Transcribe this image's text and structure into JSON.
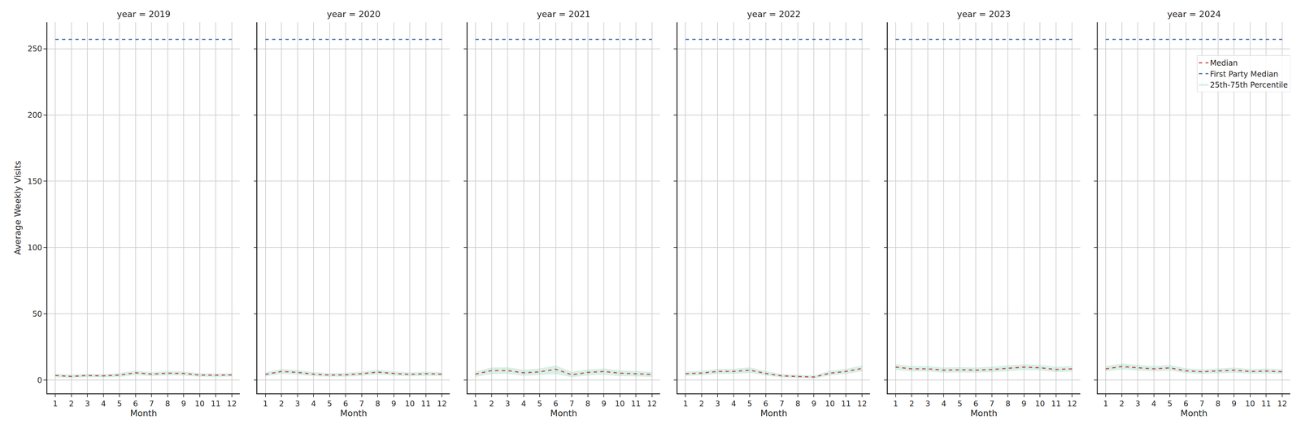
{
  "chart_data": [
    {
      "type": "line",
      "title": "year = 2019",
      "xlabel": "Month",
      "ylabel": "Average Weekly Visits",
      "x": [
        1,
        2,
        3,
        4,
        5,
        6,
        7,
        8,
        9,
        10,
        11,
        12
      ],
      "xlim": [
        0.5,
        12.5
      ],
      "xticks": [
        1,
        2,
        3,
        4,
        5,
        6,
        7,
        8,
        9,
        10,
        11,
        12
      ],
      "ylim": [
        -10,
        270
      ],
      "yticks": [
        0,
        50,
        100,
        150,
        200,
        250
      ],
      "grid": true,
      "series": [
        {
          "name": "Median",
          "color": "#c44e52",
          "line_style": "dashed",
          "values": [
            3.5,
            2.8,
            3.5,
            3.2,
            3.8,
            5.5,
            4.5,
            5.2,
            5.0,
            3.8,
            3.7,
            3.9
          ]
        },
        {
          "name": "First Party Median",
          "color": "#4c72b0",
          "line_style": "dashed",
          "values": [
            257,
            257,
            257,
            257,
            257,
            257,
            257,
            257,
            257,
            257,
            257,
            257
          ]
        },
        {
          "name": "25th-75th Percentile",
          "type": "band",
          "color": "#8fd3b8",
          "lower": [
            2.0,
            1.6,
            2.2,
            2.0,
            2.4,
            3.8,
            3.0,
            3.6,
            3.4,
            2.5,
            2.4,
            2.6
          ],
          "upper": [
            4.8,
            4.2,
            4.8,
            4.5,
            5.3,
            7.2,
            6.0,
            6.8,
            6.6,
            5.2,
            5.0,
            5.2
          ]
        }
      ]
    },
    {
      "type": "line",
      "title": "year = 2020",
      "xlabel": "Month",
      "tick_labels": "x",
      "x": [
        1,
        2,
        3,
        4,
        5,
        6,
        7,
        8,
        9,
        10,
        11,
        12
      ],
      "xlim": [
        0.5,
        12.5
      ],
      "xticks": [
        1,
        2,
        3,
        4,
        5,
        6,
        7,
        8,
        9,
        10,
        11,
        12
      ],
      "ylim": [
        -10,
        270
      ],
      "yticks": [
        0,
        50,
        100,
        150,
        200,
        250
      ],
      "grid": true,
      "series": [
        {
          "name": "Median",
          "color": "#c44e52",
          "line_style": "dashed",
          "values": [
            4.3,
            6.5,
            5.8,
            4.5,
            3.8,
            4.0,
            4.8,
            6.0,
            5.0,
            4.3,
            4.8,
            4.5
          ]
        },
        {
          "name": "First Party Median",
          "color": "#4c72b0",
          "line_style": "dashed",
          "values": [
            257,
            257,
            257,
            257,
            257,
            257,
            257,
            257,
            257,
            257,
            257,
            257
          ]
        },
        {
          "name": "25th-75th Percentile",
          "type": "band",
          "color": "#8fd3b8",
          "lower": [
            2.8,
            4.6,
            4.0,
            3.0,
            2.5,
            2.6,
            3.2,
            4.2,
            3.4,
            2.9,
            3.2,
            3.0
          ],
          "upper": [
            5.9,
            8.4,
            7.6,
            6.1,
            5.2,
            5.5,
            6.4,
            7.8,
            6.6,
            5.8,
            6.4,
            6.0
          ]
        }
      ]
    },
    {
      "type": "line",
      "title": "year = 2021",
      "xlabel": "Month",
      "tick_labels": "x",
      "x": [
        1,
        2,
        3,
        4,
        5,
        6,
        7,
        8,
        9,
        10,
        11,
        12
      ],
      "xlim": [
        0.5,
        12.5
      ],
      "xticks": [
        1,
        2,
        3,
        4,
        5,
        6,
        7,
        8,
        9,
        10,
        11,
        12
      ],
      "ylim": [
        -10,
        270
      ],
      "yticks": [
        0,
        50,
        100,
        150,
        200,
        250
      ],
      "grid": true,
      "series": [
        {
          "name": "Median",
          "color": "#c44e52",
          "line_style": "dashed",
          "values": [
            4.5,
            7.2,
            7.2,
            5.5,
            6.2,
            8.2,
            4.0,
            5.8,
            6.5,
            5.2,
            4.8,
            4.2
          ]
        },
        {
          "name": "First Party Median",
          "color": "#4c72b0",
          "line_style": "dashed",
          "values": [
            257,
            257,
            257,
            257,
            257,
            257,
            257,
            257,
            257,
            257,
            257,
            257
          ]
        },
        {
          "name": "25th-75th Percentile",
          "type": "band",
          "color": "#8fd3b8",
          "lower": [
            2.5,
            4.5,
            4.8,
            3.2,
            3.8,
            4.5,
            2.2,
            3.5,
            4.0,
            3.0,
            2.8,
            2.4
          ],
          "upper": [
            6.5,
            9.5,
            9.6,
            7.8,
            8.8,
            11.0,
            6.2,
            8.0,
            8.8,
            7.4,
            6.8,
            6.2
          ]
        }
      ]
    },
    {
      "type": "line",
      "title": "year = 2022",
      "xlabel": "Month",
      "tick_labels": "x",
      "x": [
        1,
        2,
        3,
        4,
        5,
        6,
        7,
        8,
        9,
        10,
        11,
        12
      ],
      "xlim": [
        0.5,
        12.5
      ],
      "xticks": [
        1,
        2,
        3,
        4,
        5,
        6,
        7,
        8,
        9,
        10,
        11,
        12
      ],
      "ylim": [
        -10,
        270
      ],
      "yticks": [
        0,
        50,
        100,
        150,
        200,
        250
      ],
      "grid": true,
      "series": [
        {
          "name": "Median",
          "color": "#c44e52",
          "line_style": "dashed",
          "values": [
            4.8,
            5.3,
            6.5,
            6.5,
            7.5,
            5.0,
            3.2,
            2.8,
            2.3,
            5.2,
            6.5,
            8.8
          ]
        },
        {
          "name": "First Party Median",
          "color": "#4c72b0",
          "line_style": "dashed",
          "values": [
            257,
            257,
            257,
            257,
            257,
            257,
            257,
            257,
            257,
            257,
            257,
            257
          ]
        },
        {
          "name": "25th-75th Percentile",
          "type": "band",
          "color": "#8fd3b8",
          "lower": [
            3.2,
            3.6,
            4.6,
            4.6,
            5.4,
            3.4,
            2.0,
            1.6,
            1.2,
            3.5,
            4.6,
            6.6
          ],
          "upper": [
            6.4,
            7.0,
            8.4,
            8.5,
            9.6,
            6.8,
            4.6,
            4.1,
            3.5,
            7.0,
            8.5,
            11.0
          ]
        }
      ]
    },
    {
      "type": "line",
      "title": "year = 2023",
      "xlabel": "Month",
      "tick_labels": "x",
      "x": [
        1,
        2,
        3,
        4,
        5,
        6,
        7,
        8,
        9,
        10,
        11,
        12
      ],
      "xlim": [
        0.5,
        12.5
      ],
      "xticks": [
        1,
        2,
        3,
        4,
        5,
        6,
        7,
        8,
        9,
        10,
        11,
        12
      ],
      "ylim": [
        -10,
        270
      ],
      "yticks": [
        0,
        50,
        100,
        150,
        200,
        250
      ],
      "grid": true,
      "series": [
        {
          "name": "Median",
          "color": "#c44e52",
          "line_style": "dashed",
          "values": [
            9.8,
            8.5,
            8.5,
            7.5,
            7.8,
            7.5,
            8.0,
            8.8,
            9.8,
            9.3,
            8.0,
            8.5
          ]
        },
        {
          "name": "First Party Median",
          "color": "#4c72b0",
          "line_style": "dashed",
          "values": [
            257,
            257,
            257,
            257,
            257,
            257,
            257,
            257,
            257,
            257,
            257,
            257
          ]
        },
        {
          "name": "25th-75th Percentile",
          "type": "band",
          "color": "#8fd3b8",
          "lower": [
            7.6,
            6.5,
            6.5,
            5.6,
            5.8,
            5.6,
            6.0,
            6.7,
            7.6,
            7.2,
            6.0,
            6.5
          ],
          "upper": [
            12.0,
            10.6,
            10.6,
            9.5,
            9.8,
            9.5,
            10.1,
            11.0,
            12.0,
            11.5,
            10.1,
            10.6
          ]
        }
      ]
    },
    {
      "type": "line",
      "title": "year = 2024",
      "xlabel": "Month",
      "tick_labels": "x",
      "legend": "upper right",
      "x": [
        1,
        2,
        3,
        4,
        5,
        6,
        7,
        8,
        9,
        10,
        11,
        12
      ],
      "xlim": [
        0.5,
        12.5
      ],
      "xticks": [
        1,
        2,
        3,
        4,
        5,
        6,
        7,
        8,
        9,
        10,
        11,
        12
      ],
      "ylim": [
        -10,
        270
      ],
      "yticks": [
        0,
        50,
        100,
        150,
        200,
        250
      ],
      "grid": true,
      "series": [
        {
          "name": "Median",
          "color": "#c44e52",
          "line_style": "dashed",
          "values": [
            8.5,
            10.2,
            9.3,
            8.5,
            9.2,
            7.0,
            6.3,
            6.8,
            7.5,
            6.5,
            6.8,
            6.3
          ]
        },
        {
          "name": "First Party Median",
          "color": "#4c72b0",
          "line_style": "dashed",
          "values": [
            257,
            257,
            257,
            257,
            257,
            257,
            257,
            257,
            257,
            257,
            257,
            257
          ]
        },
        {
          "name": "25th-75th Percentile",
          "type": "band",
          "color": "#8fd3b8",
          "lower": [
            6.5,
            8.0,
            7.2,
            6.5,
            7.1,
            5.2,
            4.6,
            5.0,
            5.6,
            4.8,
            5.0,
            4.6
          ],
          "upper": [
            10.6,
            12.5,
            11.5,
            10.6,
            11.4,
            8.9,
            8.1,
            8.7,
            9.5,
            8.3,
            8.7,
            8.1
          ]
        }
      ]
    }
  ]
}
